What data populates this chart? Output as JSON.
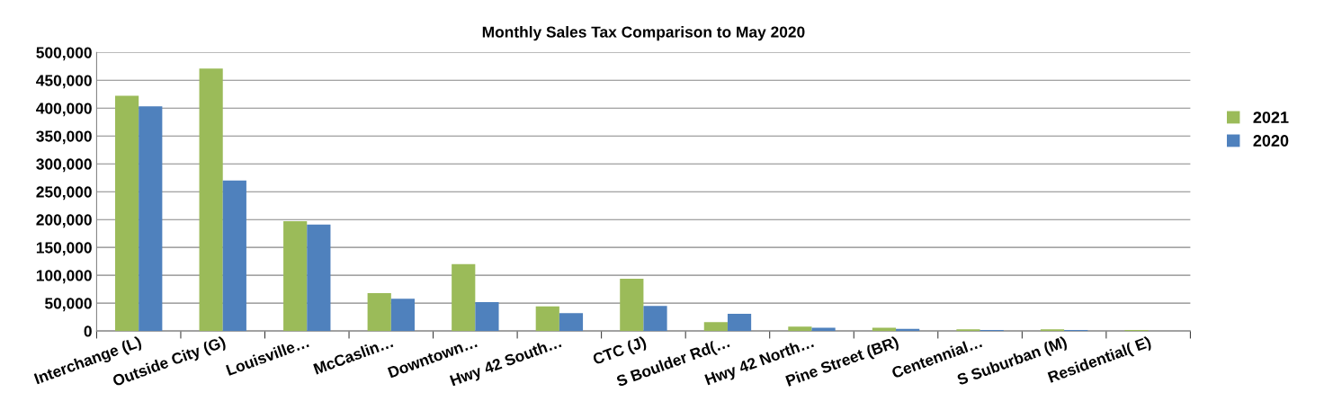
{
  "chart_data": {
    "type": "bar",
    "title": "Monthly Sales Tax Comparison to May 2020",
    "categories": [
      "Interchange (L)",
      "Outside City (G)",
      "Louisville…",
      "McCaslin…",
      "Downtown…",
      "Hwy 42 South…",
      "CTC (J)",
      "S Boulder Rd(…",
      "Hwy 42 North…",
      "Pine Street (BR)",
      "Centennial…",
      "S Suburban (M)",
      "Residential( E)"
    ],
    "series": [
      {
        "name": "2021",
        "color": "#9bbb59",
        "values": [
          422000,
          471000,
          197000,
          68000,
          120000,
          44000,
          94000,
          16000,
          8000,
          6000,
          3000,
          3000,
          2000
        ]
      },
      {
        "name": "2020",
        "color": "#4f81bd",
        "values": [
          403000,
          270000,
          191000,
          58000,
          52000,
          32000,
          45000,
          31000,
          6000,
          4000,
          2000,
          2000,
          0
        ]
      }
    ],
    "ylim": [
      0,
      500000
    ],
    "yticks": [
      {
        "value": 0,
        "label": "0"
      },
      {
        "value": 50000,
        "label": "50,000"
      },
      {
        "value": 100000,
        "label": "100,000"
      },
      {
        "value": 150000,
        "label": "150,000"
      },
      {
        "value": 200000,
        "label": "200,000"
      },
      {
        "value": 250000,
        "label": "250,000"
      },
      {
        "value": 300000,
        "label": "300,000"
      },
      {
        "value": 350000,
        "label": "350,000"
      },
      {
        "value": 400000,
        "label": "400,000"
      },
      {
        "value": 450000,
        "label": "450,000"
      },
      {
        "value": 500000,
        "label": "500,000"
      }
    ],
    "grid": "y",
    "legend": "right"
  }
}
